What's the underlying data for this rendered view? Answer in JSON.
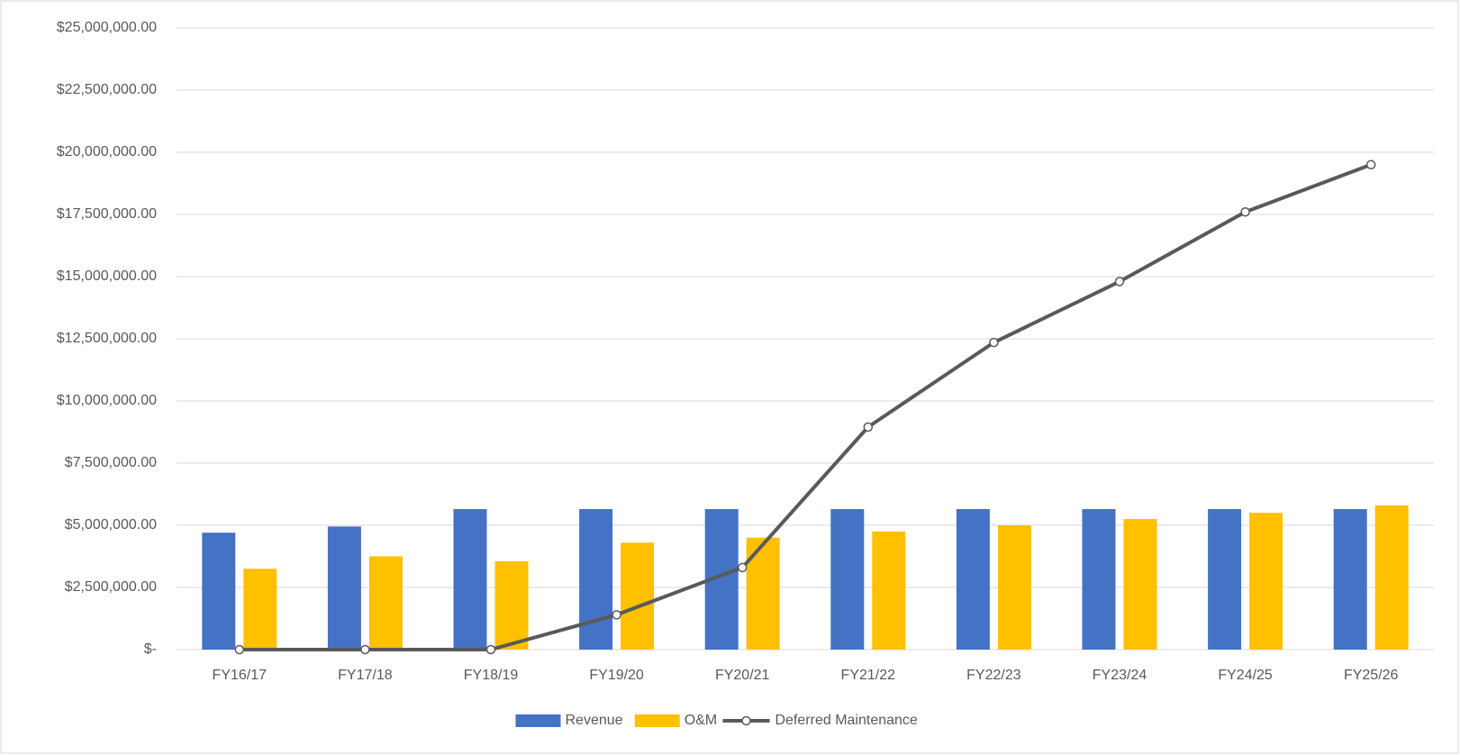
{
  "chart_data": {
    "type": "bar_line",
    "categories": [
      "FY16/17",
      "FY17/18",
      "FY18/19",
      "FY19/20",
      "FY20/21",
      "FY21/22",
      "FY22/23",
      "FY23/24",
      "FY24/25",
      "FY25/26"
    ],
    "series": [
      {
        "name": "Revenue",
        "type": "bar",
        "color": "#4472c4",
        "values": [
          4700000,
          4950000,
          5650000,
          5650000,
          5650000,
          5650000,
          5650000,
          5650000,
          5650000,
          5650000
        ]
      },
      {
        "name": "O&M",
        "type": "bar",
        "color": "#ffc000",
        "values": [
          3250000,
          3750000,
          3550000,
          4300000,
          4500000,
          4750000,
          5000000,
          5250000,
          5500000,
          5800000
        ]
      },
      {
        "name": "Deferred Maintenance",
        "type": "line",
        "color": "#595959",
        "values": [
          0,
          0,
          0,
          1400000,
          3300000,
          8950000,
          12350000,
          14800000,
          17600000,
          19500000
        ]
      }
    ],
    "ylim": [
      0,
      25000000
    ],
    "yticks": [
      {
        "value": 0,
        "label": "$-"
      },
      {
        "value": 2500000,
        "label": "$2,500,000.00"
      },
      {
        "value": 5000000,
        "label": "$5,000,000.00"
      },
      {
        "value": 7500000,
        "label": "$7,500,000.00"
      },
      {
        "value": 10000000,
        "label": "$10,000,000.00"
      },
      {
        "value": 12500000,
        "label": "$12,500,000.00"
      },
      {
        "value": 15000000,
        "label": "$15,000,000.00"
      },
      {
        "value": 17500000,
        "label": "$17,500,000.00"
      },
      {
        "value": 20000000,
        "label": "$20,000,000.00"
      },
      {
        "value": 22500000,
        "label": "$22,500,000.00"
      },
      {
        "value": 25000000,
        "label": "$25,000,000.00"
      }
    ],
    "grid": true,
    "legend": "bottom"
  }
}
